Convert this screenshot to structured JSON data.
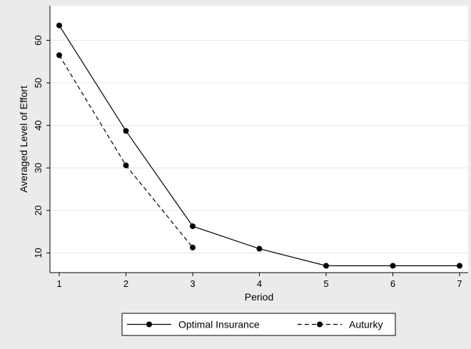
{
  "chart_data": {
    "type": "line",
    "title": "",
    "xlabel": "Period",
    "ylabel": "Averaged Level of Effort",
    "xlim": [
      1,
      7
    ],
    "ylim": [
      6,
      66
    ],
    "x_ticks": [
      1,
      2,
      3,
      4,
      5,
      6,
      7
    ],
    "y_ticks": [
      10,
      20,
      30,
      40,
      50,
      60
    ],
    "grid": true,
    "legend_position": "bottom",
    "series": [
      {
        "name": "Optimal Insurance",
        "style": "solid",
        "color": "#000000",
        "x": [
          1,
          2,
          3,
          4,
          5,
          6,
          7
        ],
        "y": [
          63.5,
          38.7,
          16.3,
          11.0,
          7.0,
          7.0,
          7.0
        ]
      },
      {
        "name": "Auturky",
        "style": "dashed",
        "color": "#000000",
        "x": [
          1,
          2,
          3
        ],
        "y": [
          56.5,
          30.6,
          11.3
        ]
      }
    ]
  }
}
